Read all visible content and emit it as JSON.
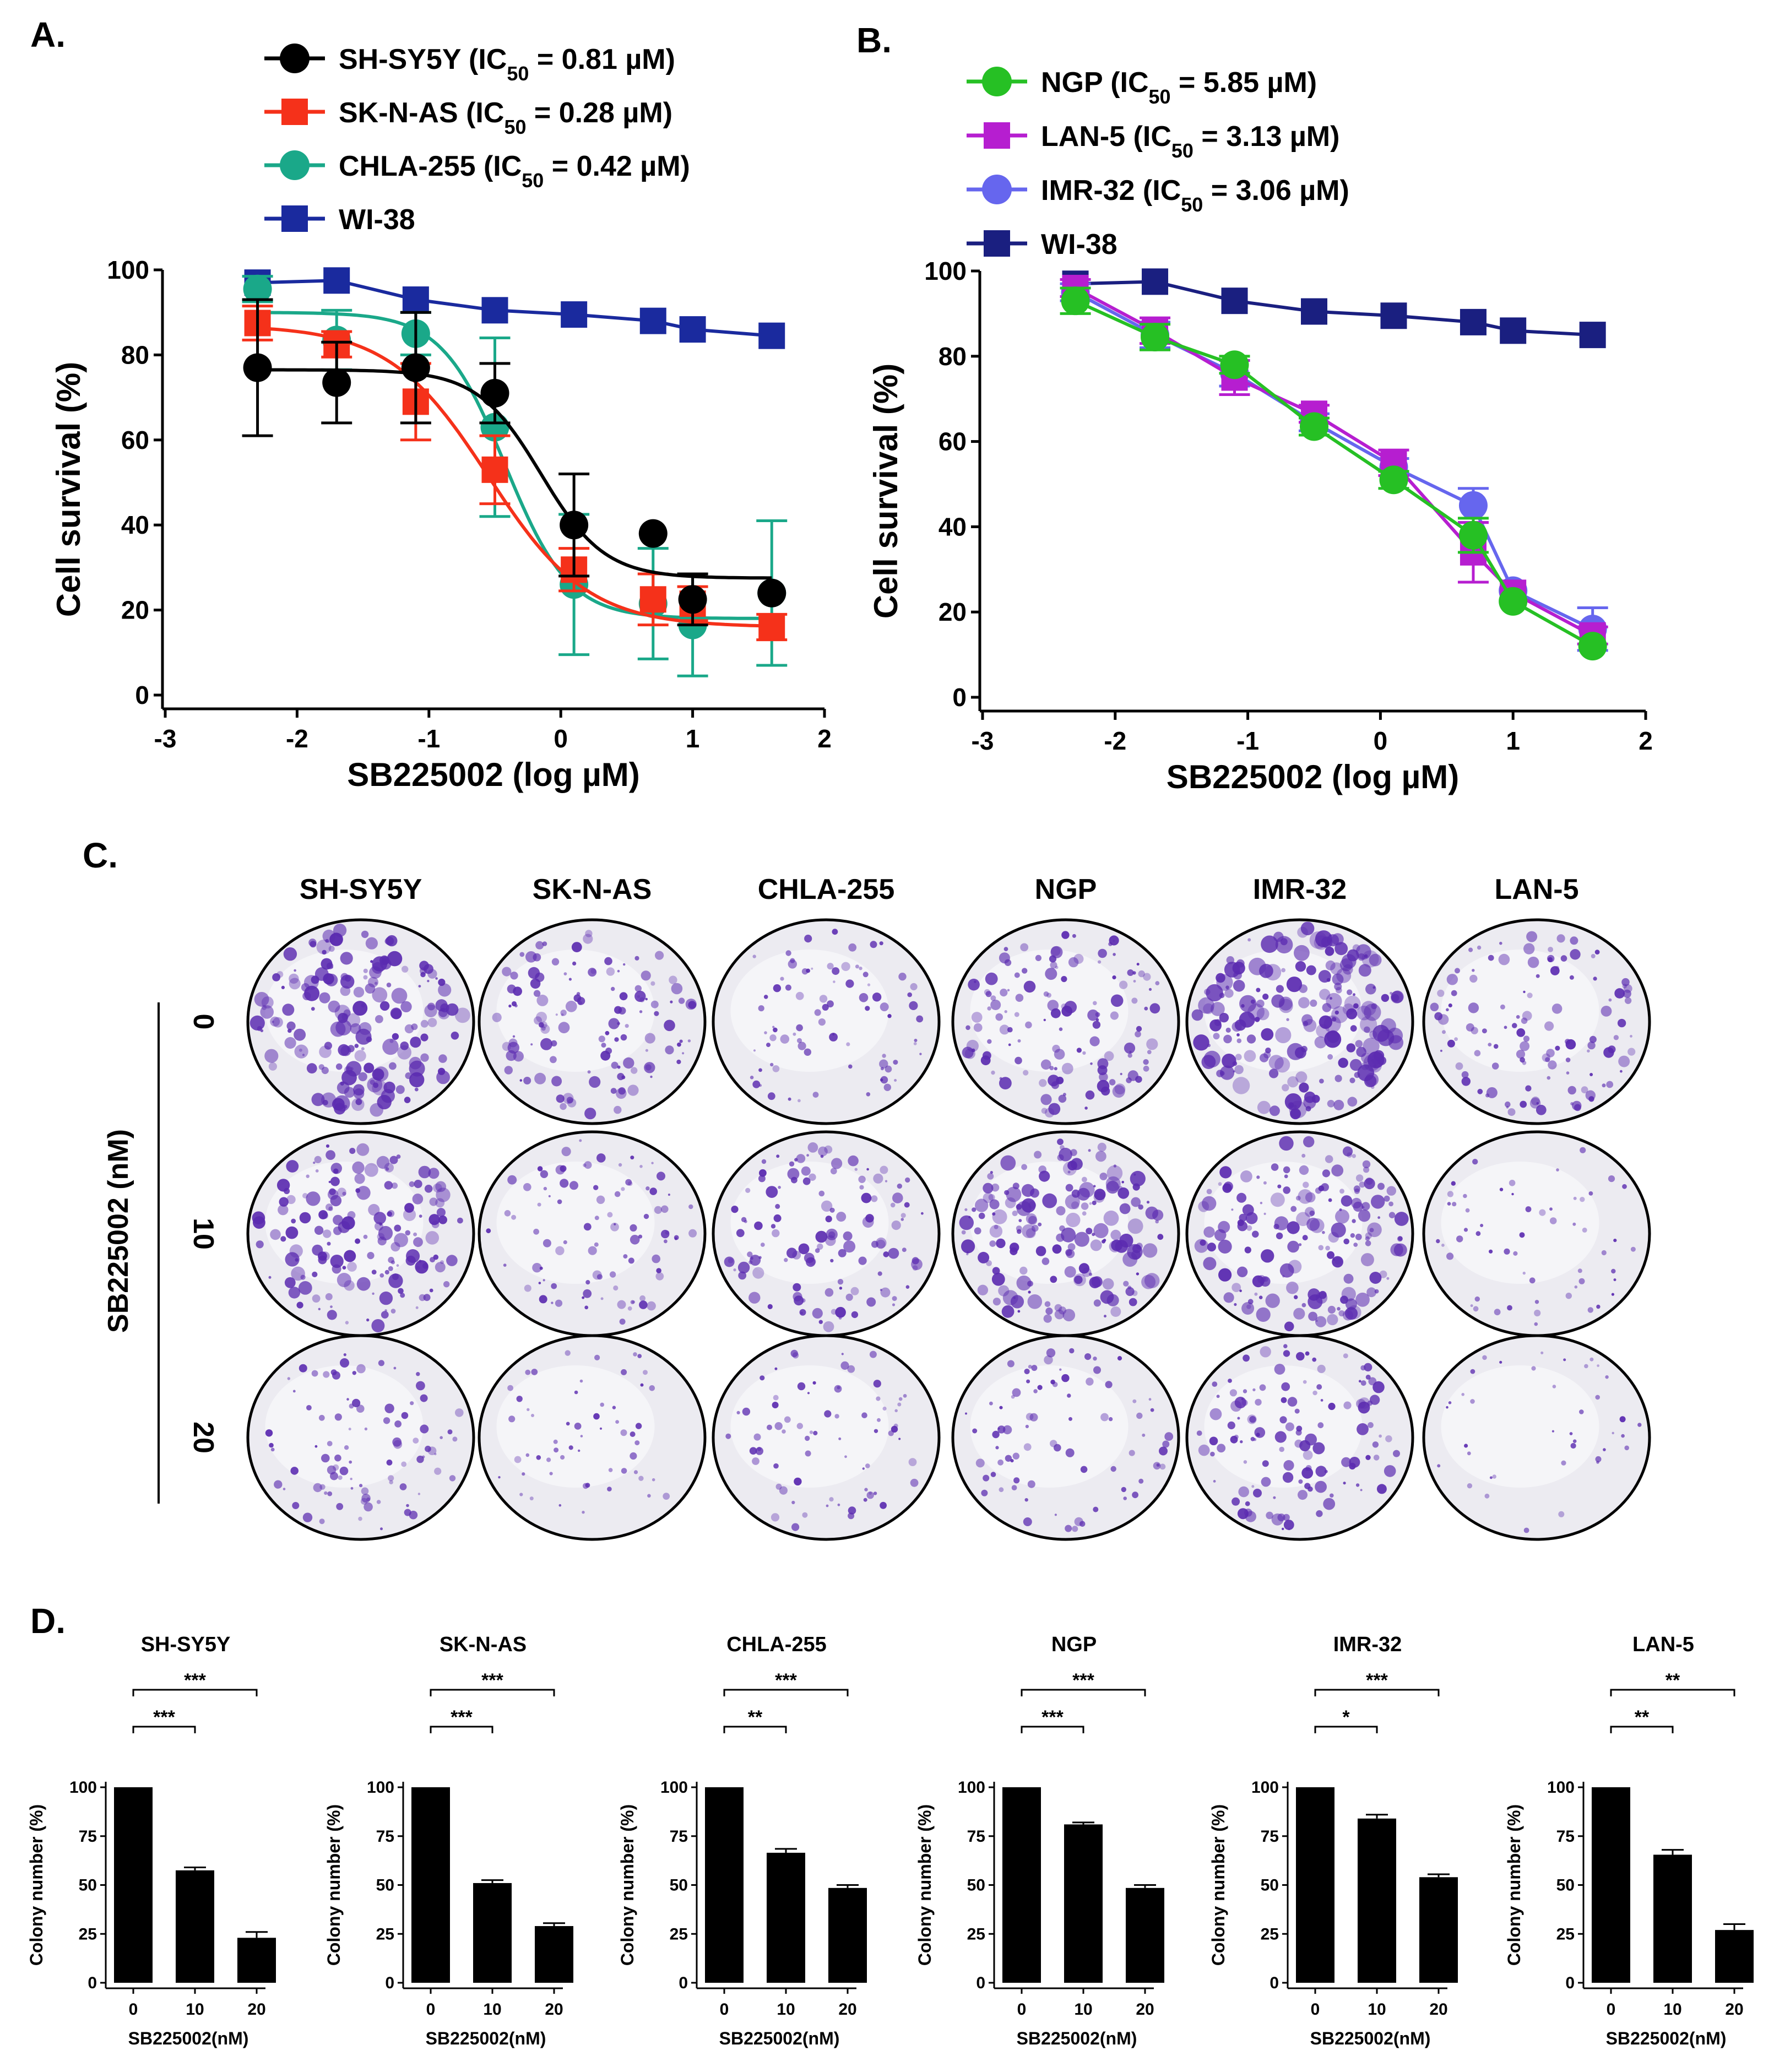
{
  "panels": {
    "a": "A.",
    "b": "B.",
    "c": "C.",
    "d": "D."
  },
  "chart_data": [
    {
      "id": "A",
      "type": "scatter",
      "xlabel": "SB225002 (log µM)",
      "ylabel": "Cell survival (%)",
      "xlim": [
        -3,
        2
      ],
      "ylim": [
        0,
        100
      ],
      "xticks": [
        "-3",
        "-2",
        "-1",
        "0",
        "1",
        "2"
      ],
      "yticks": [
        "0",
        "20",
        "40",
        "60",
        "80",
        "100"
      ],
      "x": [
        -2.3,
        -1.7,
        -1.1,
        -0.5,
        0.1,
        0.7,
        1.0,
        1.6
      ],
      "series": [
        {
          "name": "SH-SY5Y",
          "ic50": "0.81 µM",
          "color": "#000000",
          "marker": "circle",
          "values": [
            77,
            73.5,
            77,
            71,
            40,
            38,
            22.5,
            24
          ],
          "errors": [
            16,
            9.5,
            13,
            7,
            12,
            0,
            6,
            0
          ],
          "fit": {
            "top": 76.5,
            "bottom": 27.5,
            "logec50": -0.15,
            "hill": 1.8
          }
        },
        {
          "name": "SK-N-AS",
          "ic50": "0.28 µM",
          "color": "#f5311a",
          "marker": "square",
          "values": [
            87.5,
            82.5,
            69,
            53,
            29.5,
            22.5,
            21.5,
            16
          ],
          "errors": [
            4,
            3,
            9,
            8,
            5,
            6,
            4,
            3
          ],
          "fit": {
            "top": 87,
            "bottom": 16,
            "logec50": -0.55,
            "hill": 1.15
          }
        },
        {
          "name": "CHLA-255",
          "ic50": "0.42 µM",
          "color": "#1aa889",
          "marker": "circle",
          "values": [
            95.5,
            83.5,
            85,
            63,
            26,
            21.5,
            16.5,
            24
          ],
          "errors": [
            3,
            7,
            5,
            21,
            16.5,
            13,
            12,
            17
          ],
          "fit": {
            "top": 90,
            "bottom": 18,
            "logec50": -0.42,
            "hill": 1.8
          }
        },
        {
          "name": "WI-38",
          "ic50": "",
          "color": "#1a2a9e",
          "marker": "square",
          "values": [
            97,
            97.5,
            93,
            90.5,
            89.5,
            88,
            86,
            84.5
          ],
          "errors": [
            0,
            0,
            0,
            0,
            0,
            0,
            0,
            0
          ],
          "fit": "connect"
        }
      ]
    },
    {
      "id": "B",
      "type": "scatter",
      "xlabel": "SB225002 (log µM)",
      "ylabel": "Cell survival (%)",
      "xlim": [
        -3,
        2
      ],
      "ylim": [
        0,
        100
      ],
      "xticks": [
        "-3",
        "-2",
        "-1",
        "0",
        "1",
        "2"
      ],
      "yticks": [
        "0",
        "20",
        "40",
        "60",
        "80",
        "100"
      ],
      "x": [
        -2.3,
        -1.7,
        -1.1,
        -0.5,
        0.1,
        0.7,
        1.0,
        1.6
      ],
      "series": [
        {
          "name": "NGP",
          "ic50": "5.85 µM",
          "color": "#26c024",
          "marker": "circle",
          "values": [
            93,
            84.5,
            78,
            63.5,
            51,
            38,
            22.5,
            12
          ],
          "errors": [
            3,
            3,
            2,
            2,
            2,
            4,
            0,
            0
          ],
          "fit": "connect"
        },
        {
          "name": "LAN-5",
          "ic50": "3.13 µM",
          "color": "#b61ed0",
          "marker": "square",
          "values": [
            96,
            86,
            75,
            66.5,
            55,
            34,
            24.5,
            14.5
          ],
          "errors": [
            2,
            3,
            4,
            2,
            3,
            7,
            0,
            2
          ],
          "fit": "connect"
        },
        {
          "name": "IMR-32",
          "ic50": "3.06 µM",
          "color": "#6666ee",
          "marker": "circle",
          "values": [
            95,
            85,
            76,
            64.5,
            54,
            45,
            25,
            16
          ],
          "errors": [
            2,
            3,
            3,
            2,
            2,
            4,
            0,
            5
          ],
          "fit": "connect"
        },
        {
          "name": "WI-38",
          "ic50": "",
          "color": "#1a1f80",
          "marker": "square",
          "values": [
            97,
            97.5,
            93,
            90.5,
            89.5,
            88,
            86,
            85
          ],
          "errors": [
            0,
            0,
            0,
            0,
            0,
            0,
            0,
            0
          ],
          "fit": "connect"
        }
      ]
    },
    {
      "id": "D",
      "type": "bar",
      "ylabel": "Colony number (%)",
      "xlabel": "SB225002(nM)",
      "categories": [
        "0",
        "10",
        "20"
      ],
      "ylim": [
        0,
        100
      ],
      "yticks": [
        "0",
        "25",
        "50",
        "75",
        "100"
      ],
      "charts": [
        {
          "title": "SH-SY5Y",
          "values": [
            100,
            57.5,
            23
          ],
          "errors": [
            0,
            1.5,
            3
          ],
          "sig_short": "***",
          "sig_long": "***"
        },
        {
          "title": "SK-N-AS",
          "values": [
            100,
            51,
            29
          ],
          "errors": [
            0,
            1.5,
            1.5
          ],
          "sig_short": "***",
          "sig_long": "***"
        },
        {
          "title": "CHLA-255",
          "values": [
            100,
            66.5,
            48.5
          ],
          "errors": [
            0,
            2,
            1.5
          ],
          "sig_short": "**",
          "sig_long": "***"
        },
        {
          "title": "NGP",
          "values": [
            100,
            81,
            48.5
          ],
          "errors": [
            0,
            1,
            1.5
          ],
          "sig_short": "***",
          "sig_long": "***"
        },
        {
          "title": "IMR-32",
          "values": [
            100,
            84,
            54
          ],
          "errors": [
            0,
            2,
            1.5
          ],
          "sig_short": "*",
          "sig_long": "***"
        },
        {
          "title": "LAN-5",
          "values": [
            100,
            65.5,
            27
          ],
          "errors": [
            0,
            2.5,
            3
          ],
          "sig_short": "**",
          "sig_long": "**"
        }
      ]
    }
  ],
  "colony_panel": {
    "cell_lines": [
      "SH-SY5Y",
      "SK-N-AS",
      "CHLA-255",
      "NGP",
      "IMR-32",
      "LAN-5"
    ],
    "row_label": "SB225002 (nM)",
    "concentrations": [
      "0",
      "10",
      "20"
    ],
    "densities": [
      [
        0.9,
        0.55,
        0.3,
        0.6,
        1.0,
        0.5
      ],
      [
        0.75,
        0.35,
        0.55,
        0.85,
        0.8,
        0.15
      ],
      [
        0.35,
        0.15,
        0.25,
        0.3,
        0.55,
        0.05
      ]
    ],
    "stain_color": "#5b2bb0"
  }
}
